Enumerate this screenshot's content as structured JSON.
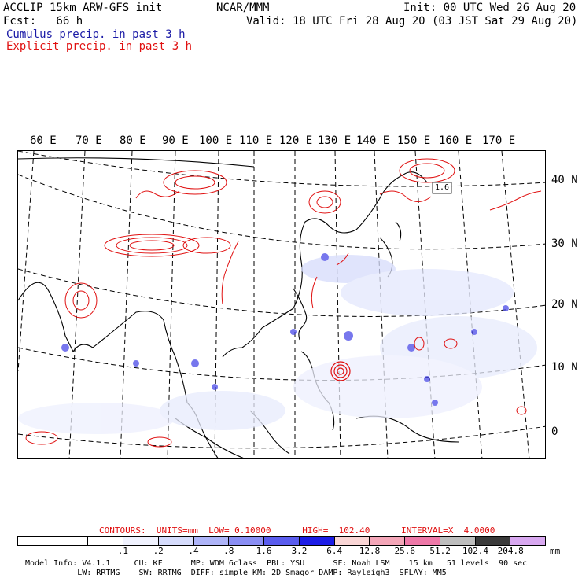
{
  "header": {
    "title_left": "ACCLIP 15km ARW-GFS init",
    "center": "NCAR/MMM",
    "init": "Init: 00 UTC Wed 26 Aug 20",
    "fcst": "Fcst:   66 h",
    "valid": "Valid: 18 UTC Fri 28 Aug 20 (03 JST Sat 29 Aug 20)",
    "legend_cumulus": "Cumulus precip. in past 3 h",
    "legend_explicit": "Explicit precip. in past 3 h",
    "colors": {
      "cumulus": "#1a1aa6",
      "explicit": "#e01010"
    }
  },
  "map": {
    "lon_labels": [
      "60 E",
      "70 E",
      "80 E",
      "90 E",
      "100 E",
      "110 E",
      "120 E",
      "130 E",
      "140 E",
      "150 E",
      "160 E",
      "170 E"
    ],
    "lat_labels": [
      "40 N",
      "30 N",
      "20 N",
      "10 N",
      "0"
    ],
    "contour_label": "1.6",
    "typhoon_symbol": "cyclone-contours"
  },
  "contours": {
    "text": "CONTOURS:  UNITS=mm  LOW= 0.10000      HIGH=  102.40      INTERVAL=X  4.0000"
  },
  "colorbar": {
    "colors": [
      "#ffffff",
      "#ffffff",
      "#ffffff",
      "#f0f2fe",
      "#d6dcfc",
      "#aeb4f8",
      "#8a8ef4",
      "#5a5cee",
      "#1c1ce6",
      "#fad6d6",
      "#f4a6b8",
      "#ee78a8",
      "#bdbdbd",
      "#3a3a3a",
      "#d8a8f0"
    ],
    "ticks": [
      ".1",
      ".2",
      ".4",
      ".8",
      "1.6",
      "3.2",
      "6.4",
      "12.8",
      "25.6",
      "51.2",
      "102.4",
      "204.8"
    ],
    "units": "mm"
  },
  "footer": {
    "line1": "Model Info: V4.1.1     CU: KF      MP: WDM 6class  PBL: YSU      SF: Noah LSM    15 km   51 levels  90 sec",
    "line2": "           LW: RRTMG    SW: RRTMG  DIFF: simple KM: 2D Smagor DAMP: Rayleigh3  SFLAY: MM5"
  }
}
